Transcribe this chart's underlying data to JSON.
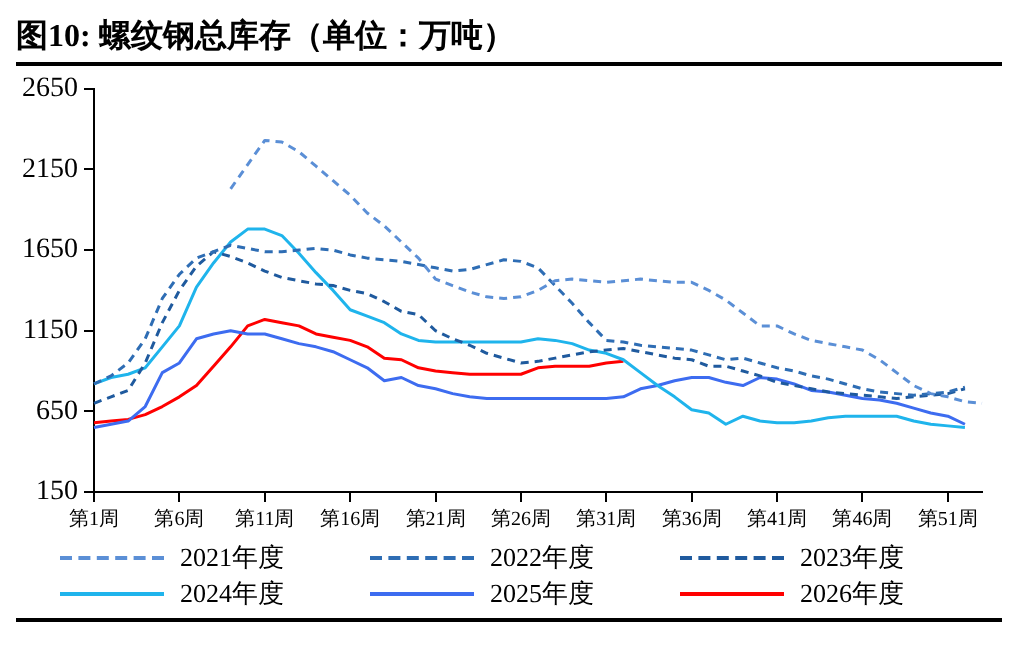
{
  "chart_data": {
    "type": "line",
    "title": "图10:  螺纹钢总库存（单位：万吨）",
    "categories": [
      "第1周",
      null,
      null,
      null,
      null,
      "第6周",
      null,
      null,
      null,
      null,
      "第11周",
      null,
      null,
      null,
      null,
      "第16周",
      null,
      null,
      null,
      null,
      "第21周",
      null,
      null,
      null,
      null,
      "第26周",
      null,
      null,
      null,
      null,
      "第31周",
      null,
      null,
      null,
      null,
      "第36周",
      null,
      null,
      null,
      null,
      "第41周",
      null,
      null,
      null,
      null,
      "第46周",
      null,
      null,
      null,
      null,
      "第51周",
      null,
      null
    ],
    "series": [
      {
        "name": "2021年度",
        "color": "#5b8fd6",
        "line_style": "dashed",
        "values": [
          null,
          null,
          null,
          null,
          null,
          null,
          null,
          null,
          2030,
          2180,
          2330,
          2320,
          2260,
          2170,
          2080,
          1990,
          1880,
          1800,
          1700,
          1600,
          1470,
          1430,
          1390,
          1360,
          1350,
          1360,
          1400,
          1460,
          1470,
          1460,
          1450,
          1460,
          1470,
          1460,
          1450,
          1450,
          1400,
          1340,
          1260,
          1180,
          1180,
          1130,
          1090,
          1070,
          1050,
          1030,
          970,
          890,
          810,
          760,
          740,
          710,
          700
        ]
      },
      {
        "name": "2022年度",
        "color": "#2e6db4",
        "line_style": "dashed",
        "values": [
          820,
          870,
          950,
          1100,
          1350,
          1500,
          1600,
          1640,
          1680,
          1660,
          1640,
          1640,
          1650,
          1660,
          1650,
          1620,
          1600,
          1590,
          1580,
          1560,
          1540,
          1520,
          1530,
          1560,
          1590,
          1580,
          1540,
          1430,
          1320,
          1200,
          1090,
          1080,
          1060,
          1050,
          1040,
          1030,
          1000,
          970,
          980,
          950,
          920,
          900,
          870,
          850,
          820,
          790,
          770,
          760,
          750,
          760,
          770,
          800,
          null
        ]
      },
      {
        "name": "2023年度",
        "color": "#1f5a9e",
        "line_style": "dashed",
        "values": [
          700,
          740,
          780,
          950,
          1200,
          1400,
          1550,
          1640,
          1610,
          1570,
          1520,
          1480,
          1460,
          1440,
          1430,
          1400,
          1380,
          1330,
          1270,
          1250,
          1150,
          1100,
          1060,
          1010,
          980,
          950,
          960,
          980,
          1000,
          1020,
          1030,
          1040,
          1020,
          1000,
          980,
          970,
          930,
          930,
          900,
          870,
          830,
          810,
          790,
          770,
          760,
          750,
          740,
          730,
          740,
          750,
          760,
          790,
          null
        ]
      },
      {
        "name": "2024年度",
        "color": "#1fb4ec",
        "line_style": "solid",
        "values": [
          820,
          860,
          880,
          920,
          1050,
          1180,
          1420,
          1570,
          1700,
          1780,
          1780,
          1740,
          1630,
          1510,
          1400,
          1280,
          1240,
          1200,
          1130,
          1090,
          1080,
          1080,
          1080,
          1080,
          1080,
          1080,
          1100,
          1090,
          1070,
          1030,
          1010,
          970,
          890,
          810,
          740,
          660,
          640,
          570,
          620,
          590,
          580,
          580,
          590,
          610,
          620,
          620,
          620,
          620,
          590,
          570,
          560,
          550,
          null
        ]
      },
      {
        "name": "2025年度",
        "color": "#3d6cf0",
        "line_style": "solid",
        "values": [
          550,
          570,
          590,
          680,
          890,
          950,
          1100,
          1130,
          1150,
          1130,
          1130,
          1100,
          1070,
          1050,
          1020,
          970,
          920,
          840,
          860,
          810,
          790,
          760,
          740,
          730,
          730,
          730,
          730,
          730,
          730,
          730,
          730,
          740,
          790,
          810,
          840,
          860,
          860,
          830,
          810,
          860,
          850,
          820,
          780,
          770,
          750,
          730,
          720,
          700,
          670,
          640,
          620,
          570,
          null
        ]
      },
      {
        "name": "2026年度",
        "color": "#ff0000",
        "line_style": "solid",
        "values": [
          580,
          590,
          600,
          630,
          680,
          740,
          810,
          930,
          1050,
          1180,
          1220,
          1200,
          1180,
          1130,
          1110,
          1090,
          1050,
          980,
          970,
          920,
          900,
          890,
          880,
          880,
          880,
          880,
          920,
          930,
          930,
          930,
          950,
          960,
          null,
          null,
          null,
          null,
          null,
          null,
          null,
          null,
          null,
          null,
          null,
          null,
          null,
          null,
          null,
          null,
          null,
          null,
          null,
          null,
          null
        ]
      }
    ],
    "ylim": [
      150,
      2650
    ],
    "yticks": [
      150,
      650,
      1150,
      1650,
      2150,
      2650
    ],
    "grid": false,
    "legend": "bottom",
    "marker": "none"
  }
}
